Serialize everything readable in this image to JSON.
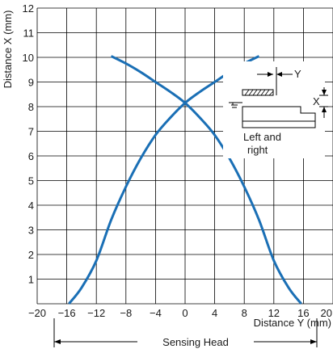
{
  "chart_data": {
    "type": "line",
    "title": "",
    "xlabel": "Distance Y (mm)",
    "ylabel": "Distance X (mm)",
    "xlim": [
      -20,
      20
    ],
    "ylim": [
      0,
      12
    ],
    "xticks": [
      -20,
      -16,
      -12,
      -8,
      -4,
      0,
      4,
      8,
      12,
      16,
      20
    ],
    "yticks": [
      1,
      2,
      3,
      4,
      5,
      6,
      7,
      8,
      9,
      10,
      11,
      12
    ],
    "grid": true,
    "line_color": "#1a6fb5",
    "series": [
      {
        "name": "",
        "x": [
          -10,
          -8,
          -6,
          -4,
          -2,
          0,
          2,
          4,
          6,
          8,
          10,
          12,
          14,
          15.7
        ],
        "y": [
          10.05,
          9.75,
          9.4,
          9.0,
          8.6,
          8.15,
          7.55,
          6.85,
          5.9,
          4.75,
          3.4,
          1.75,
          0.65,
          0
        ]
      },
      {
        "name": "",
        "x": [
          10,
          8,
          6,
          4,
          2,
          0,
          -2,
          -4,
          -6,
          -8,
          -10,
          -12,
          -14,
          -15.7
        ],
        "y": [
          10.05,
          9.75,
          9.4,
          9.0,
          8.6,
          8.15,
          7.55,
          6.85,
          5.9,
          4.75,
          3.4,
          1.75,
          0.65,
          0
        ]
      }
    ],
    "annotations": {
      "inset_label_y": "Y",
      "inset_label_x": "X",
      "inset_caption_line1": "Left and",
      "inset_caption_line2": "right",
      "bracket_label": "Sensing Head"
    }
  }
}
